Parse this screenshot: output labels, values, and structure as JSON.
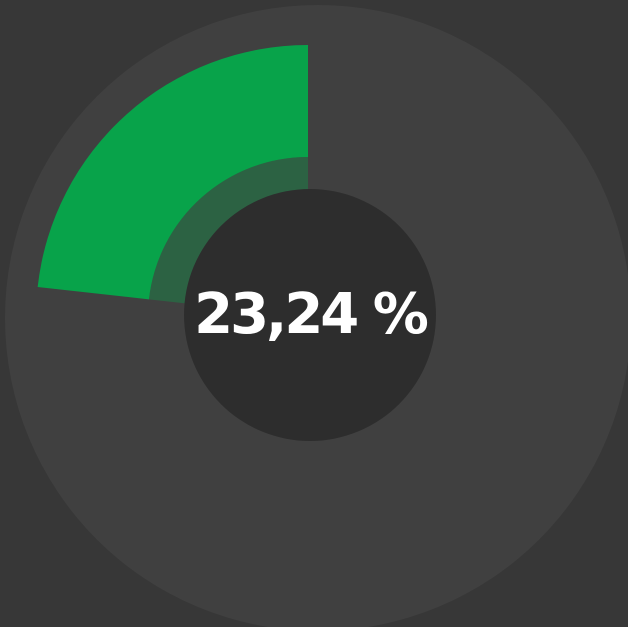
{
  "chart_data": {
    "type": "progress",
    "values": [
      23.24
    ],
    "value_labels": [
      "23,24 %"
    ],
    "color": "#08a34a"
  }
}
